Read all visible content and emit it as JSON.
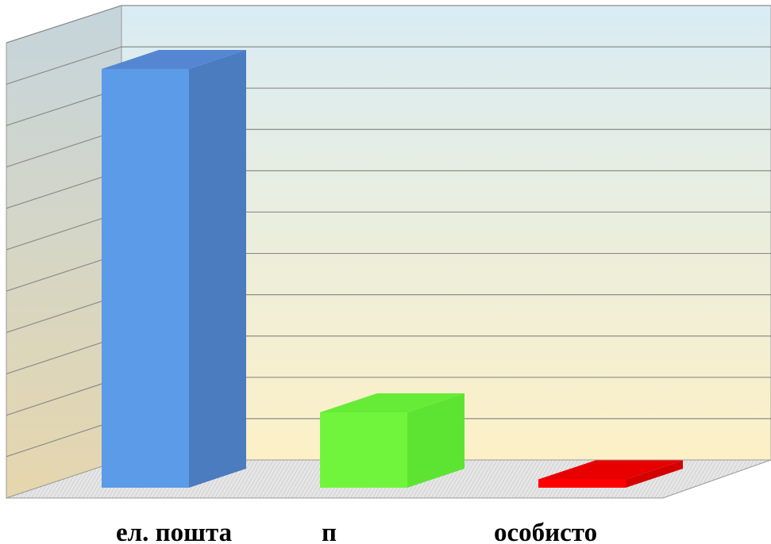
{
  "chart_data": {
    "type": "bar",
    "style": "3d-column",
    "categories": [
      "ел. пошта",
      "п",
      "особисто"
    ],
    "values": [
      10,
      1.8,
      0.2
    ],
    "ylim": [
      0,
      11
    ],
    "grid": true,
    "legend": "none",
    "colors": {
      "bars": [
        "#5b9be8",
        "#70f53c",
        "#ff0000"
      ],
      "bar_sides": [
        "#4a7cbf",
        "#5de433",
        "#d40000"
      ],
      "bar_tops": [
        "#5586d2",
        "#66ec37",
        "#e80000"
      ],
      "gridline": "#8c8c8c",
      "wall_top": "#d9ecf4",
      "wall_bottom": "#fdf0c6",
      "side_wall_top": "#c5d5dc",
      "side_wall_bottom": "#e6d6ad",
      "floor": "#dcdcdc"
    }
  }
}
